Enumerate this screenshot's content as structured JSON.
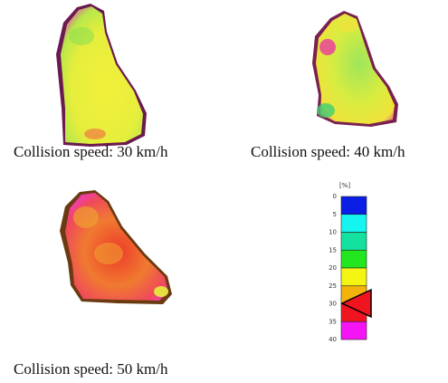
{
  "panels": [
    {
      "caption": "Collision speed: 30 km/h"
    },
    {
      "caption": "Collision speed: 40 km/h"
    },
    {
      "caption": "Collision speed: 50 km/h"
    }
  ],
  "legend": {
    "unit": "[%]",
    "ticks": [
      "0",
      "5",
      "10",
      "15",
      "20",
      "25",
      "30",
      "35",
      "40"
    ],
    "bands": [
      {
        "color": "#0a1ee6"
      },
      {
        "color": "#14f5f0"
      },
      {
        "color": "#14e0a0"
      },
      {
        "color": "#22e61e"
      },
      {
        "color": "#f5f514"
      },
      {
        "color": "#f5b20a"
      },
      {
        "color": "#f0141e"
      },
      {
        "color": "#f514f5"
      }
    ]
  }
}
